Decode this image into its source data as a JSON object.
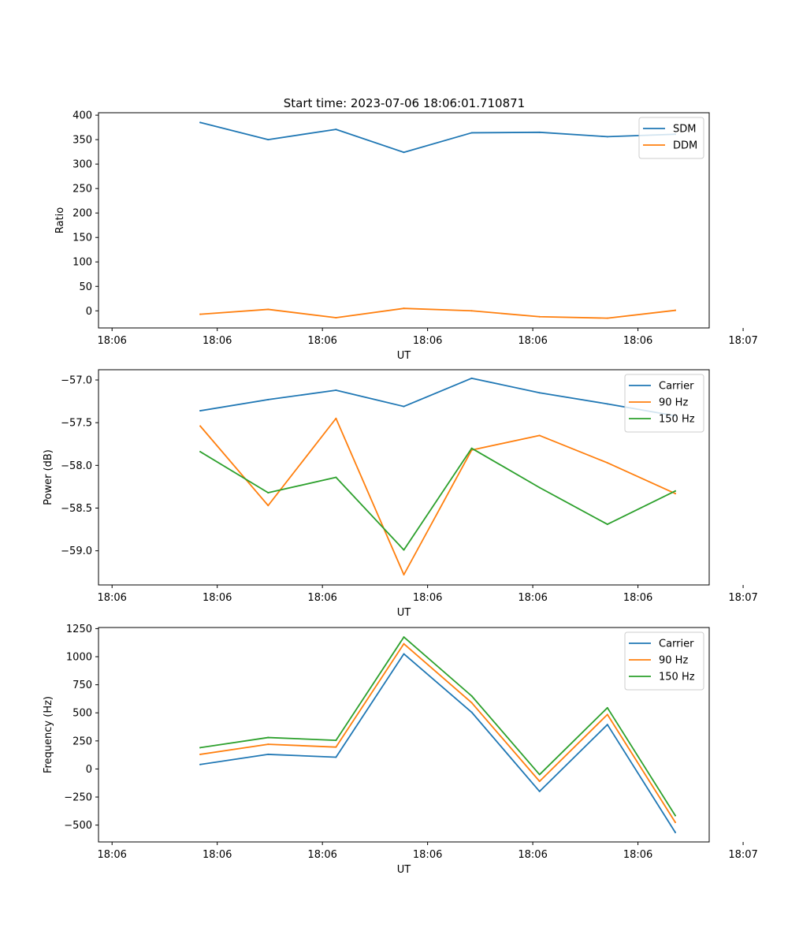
{
  "title": "Start time: 2023-07-06 18:06:01.710871",
  "colors": {
    "blue": "#1f77b4",
    "orange": "#ff7f0e",
    "green": "#2ca02c"
  },
  "chart_data": [
    {
      "type": "line",
      "title": "Start time: 2023-07-06 18:06:01.710871",
      "xlabel": "UT",
      "ylabel": "Ratio",
      "x": [
        1,
        2,
        3,
        4,
        5,
        6,
        7,
        8
      ],
      "xlim": [
        -0.5,
        8.5
      ],
      "xticks": [
        {
          "value": -0.3,
          "label": "18:06"
        },
        {
          "value": 1.25,
          "label": "18:06"
        },
        {
          "value": 2.8,
          "label": "18:06"
        },
        {
          "value": 4.35,
          "label": "18:06"
        },
        {
          "value": 5.9,
          "label": "18:06"
        },
        {
          "value": 7.45,
          "label": "18:06"
        },
        {
          "value": 9.0,
          "label": "18:07"
        }
      ],
      "ylim": [
        -35,
        405
      ],
      "yticks": [
        0,
        50,
        100,
        150,
        200,
        250,
        300,
        350,
        400
      ],
      "legend": "top-right",
      "series": [
        {
          "name": "SDM",
          "color": "#1f77b4",
          "values": [
            385,
            350,
            371,
            324,
            364,
            365,
            356,
            361
          ]
        },
        {
          "name": "DDM",
          "color": "#ff7f0e",
          "values": [
            -7,
            3,
            -14,
            5,
            0,
            -12,
            -15,
            1
          ]
        }
      ]
    },
    {
      "type": "line",
      "xlabel": "UT",
      "ylabel": "Power (dB)",
      "x": [
        1,
        2,
        3,
        4,
        5,
        6,
        7,
        8
      ],
      "xlim": [
        -0.5,
        8.5
      ],
      "xticks": [
        {
          "value": -0.3,
          "label": "18:06"
        },
        {
          "value": 1.25,
          "label": "18:06"
        },
        {
          "value": 2.8,
          "label": "18:06"
        },
        {
          "value": 4.35,
          "label": "18:06"
        },
        {
          "value": 5.9,
          "label": "18:06"
        },
        {
          "value": 7.45,
          "label": "18:06"
        },
        {
          "value": 9.0,
          "label": "18:07"
        }
      ],
      "ylim": [
        -59.4,
        -56.88
      ],
      "yticks": [
        -59.0,
        -58.5,
        -58.0,
        -57.5,
        -57.0
      ],
      "ytick_labels": [
        "−59.0",
        "−58.5",
        "−58.0",
        "−57.5",
        "−57.0"
      ],
      "legend": "top-right",
      "series": [
        {
          "name": "Carrier",
          "color": "#1f77b4",
          "values": [
            -57.36,
            -57.23,
            -57.12,
            -57.31,
            -56.98,
            -57.15,
            -57.28,
            -57.42
          ]
        },
        {
          "name": "90 Hz",
          "color": "#ff7f0e",
          "values": [
            -57.54,
            -58.47,
            -57.45,
            -59.28,
            -57.82,
            -57.65,
            -57.97,
            -58.33
          ]
        },
        {
          "name": "150 Hz",
          "color": "#2ca02c",
          "values": [
            -57.84,
            -58.32,
            -58.14,
            -58.99,
            -57.8,
            -58.26,
            -58.69,
            -58.3
          ]
        }
      ]
    },
    {
      "type": "line",
      "xlabel": "UT",
      "ylabel": "Frequency (Hz)",
      "x": [
        1,
        2,
        3,
        4,
        5,
        6,
        7,
        8
      ],
      "xlim": [
        -0.5,
        8.5
      ],
      "xticks": [
        {
          "value": -0.3,
          "label": "18:06"
        },
        {
          "value": 1.25,
          "label": "18:06"
        },
        {
          "value": 2.8,
          "label": "18:06"
        },
        {
          "value": 4.35,
          "label": "18:06"
        },
        {
          "value": 5.9,
          "label": "18:06"
        },
        {
          "value": 7.45,
          "label": "18:06"
        },
        {
          "value": 9.0,
          "label": "18:07"
        }
      ],
      "ylim": [
        -650,
        1260
      ],
      "yticks": [
        -500,
        -250,
        0,
        250,
        500,
        750,
        1000,
        1250
      ],
      "ytick_labels": [
        "−500",
        "−250",
        "0",
        "250",
        "500",
        "750",
        "1000",
        "1250"
      ],
      "legend": "top-right",
      "series": [
        {
          "name": "Carrier",
          "color": "#1f77b4",
          "values": [
            40,
            130,
            105,
            1025,
            505,
            -200,
            395,
            -565
          ]
        },
        {
          "name": "90 Hz",
          "color": "#ff7f0e",
          "values": [
            130,
            220,
            195,
            1115,
            590,
            -110,
            485,
            -475
          ]
        },
        {
          "name": "150 Hz",
          "color": "#2ca02c",
          "values": [
            190,
            280,
            255,
            1175,
            650,
            -50,
            545,
            -415
          ]
        }
      ]
    }
  ]
}
